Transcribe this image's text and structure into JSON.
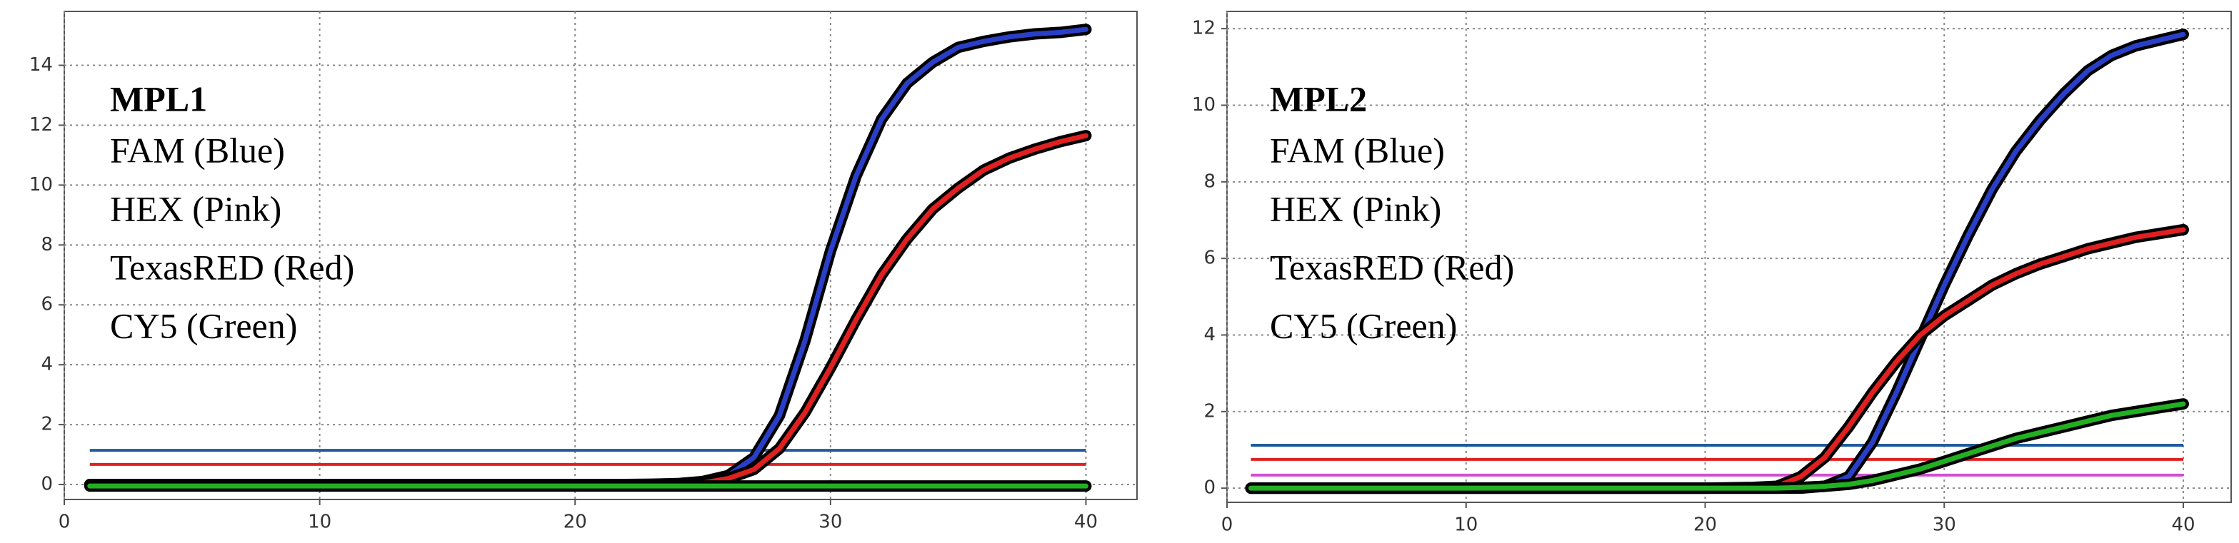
{
  "chart_data": [
    {
      "type": "line",
      "label_title": "MPL1",
      "label_lines": [
        "FAM (Blue)",
        "HEX (Pink)",
        "TexasRED (Red)",
        "CY5 (Green)"
      ],
      "x": [
        1,
        5,
        10,
        15,
        20,
        22,
        23,
        24,
        25,
        26,
        27,
        28,
        29,
        30,
        31,
        32,
        33,
        34,
        35,
        36,
        37,
        38,
        39,
        40
      ],
      "series": [
        {
          "color": "#2a3fc7",
          "values": [
            0,
            0,
            0,
            0,
            0,
            0,
            0.01,
            0.03,
            0.1,
            0.3,
            0.9,
            2.3,
            4.8,
            7.8,
            10.3,
            12.2,
            13.4,
            14.1,
            14.6,
            14.8,
            14.95,
            15.05,
            15.1,
            15.2
          ]
        },
        {
          "color": "#e02020",
          "values": [
            0,
            0,
            0,
            0,
            0,
            0,
            0,
            0.02,
            0.05,
            0.2,
            0.5,
            1.2,
            2.4,
            3.9,
            5.5,
            7.0,
            8.2,
            9.2,
            9.9,
            10.5,
            10.9,
            11.2,
            11.45,
            11.65
          ]
        },
        {
          "color": "#22b022",
          "values": [
            -0.05,
            -0.05,
            -0.05,
            -0.05,
            -0.05,
            -0.05,
            -0.05,
            -0.05,
            -0.05,
            -0.05,
            -0.05,
            -0.05,
            -0.05,
            -0.05,
            -0.05,
            -0.05,
            -0.05,
            -0.05,
            -0.05,
            -0.05,
            -0.05,
            -0.05,
            -0.05,
            -0.05
          ]
        }
      ],
      "thresholds": [
        {
          "color": "#1f5a9c",
          "value": 1.14
        },
        {
          "color": "#e02020",
          "value": 0.67
        }
      ],
      "xlim": [
        0,
        42
      ],
      "ylim": [
        -0.5,
        15.8
      ],
      "xticks": [
        0,
        10,
        20,
        30,
        40
      ],
      "yticks": [
        0,
        2,
        4,
        6,
        8,
        10,
        12,
        14
      ],
      "grid": true
    },
    {
      "type": "line",
      "label_title": "MPL2",
      "label_lines": [
        "FAM (Blue)",
        "HEX (Pink)",
        "TexasRED (Red)",
        "CY5 (Green)"
      ],
      "x": [
        1,
        5,
        10,
        15,
        20,
        22,
        23,
        24,
        25,
        26,
        27,
        28,
        29,
        30,
        31,
        32,
        33,
        34,
        35,
        36,
        37,
        38,
        39,
        40
      ],
      "series": [
        {
          "color": "#2a3fc7",
          "values": [
            0,
            0,
            0,
            0,
            0,
            0,
            0,
            0,
            0.05,
            0.3,
            1.2,
            2.5,
            3.9,
            5.3,
            6.6,
            7.8,
            8.8,
            9.6,
            10.3,
            10.9,
            11.3,
            11.55,
            11.7,
            11.85
          ]
        },
        {
          "color": "#e02020",
          "values": [
            0,
            0,
            0,
            0,
            0,
            0.02,
            0.05,
            0.3,
            0.8,
            1.6,
            2.5,
            3.3,
            4.0,
            4.5,
            4.9,
            5.3,
            5.6,
            5.85,
            6.05,
            6.25,
            6.4,
            6.55,
            6.65,
            6.75
          ]
        },
        {
          "color": "#22b022",
          "values": [
            0,
            0,
            0,
            0,
            0,
            0,
            0,
            0.02,
            0.05,
            0.1,
            0.2,
            0.35,
            0.5,
            0.7,
            0.9,
            1.1,
            1.3,
            1.45,
            1.6,
            1.75,
            1.9,
            2.0,
            2.1,
            2.2
          ]
        }
      ],
      "thresholds": [
        {
          "color": "#1f5a9c",
          "value": 1.12
        },
        {
          "color": "#e02020",
          "value": 0.75
        },
        {
          "color": "#d050d0",
          "value": 0.34
        }
      ],
      "xlim": [
        0,
        42
      ],
      "ylim": [
        -0.37,
        12.45
      ],
      "xticks": [
        0,
        10,
        20,
        30,
        40
      ],
      "yticks": [
        0,
        2,
        4,
        6,
        8,
        10,
        12
      ],
      "grid": true
    }
  ]
}
